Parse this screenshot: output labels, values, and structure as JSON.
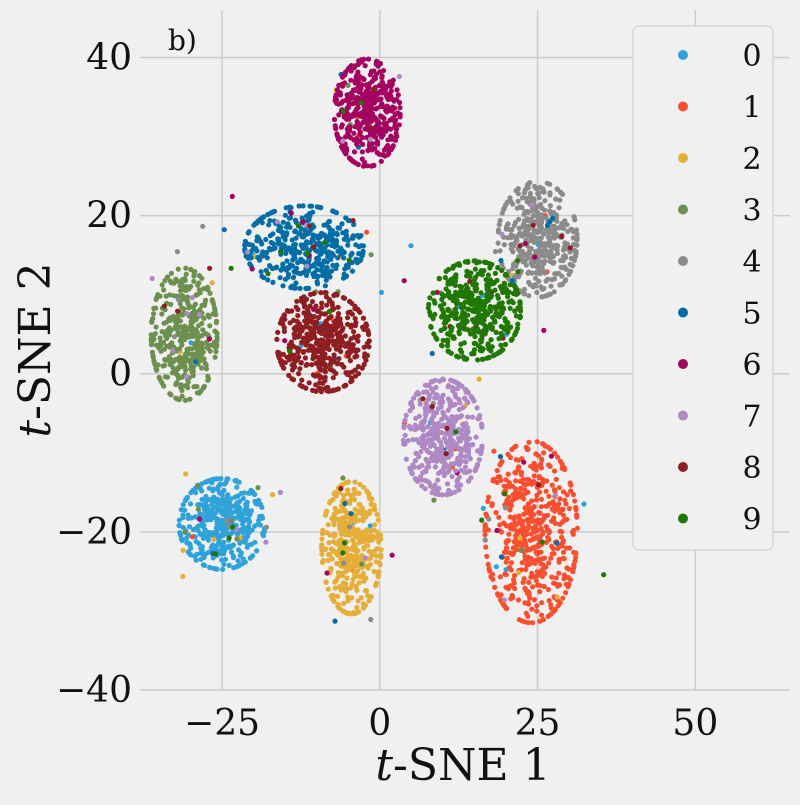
{
  "chart_data": {
    "type": "scatter",
    "panel_label": "b)",
    "xlabel_italic": "t",
    "xlabel_rest": "-SNE 1",
    "ylabel_italic": "t",
    "ylabel_rest": "-SNE 2",
    "xlim": [
      -38,
      65
    ],
    "ylim": [
      -40,
      46
    ],
    "xticks": [
      -25,
      0,
      25,
      50
    ],
    "xtick_labels": [
      "−25",
      "0",
      "25",
      "50"
    ],
    "yticks": [
      40,
      20,
      0,
      -20,
      -40
    ],
    "ytick_labels": [
      "40",
      "20",
      "0",
      "−20",
      "−40"
    ],
    "grid": true,
    "legend_position": "top-right",
    "series": [
      {
        "name": "0",
        "color": "#30a2da",
        "center": [
          -25,
          -19
        ],
        "spread": [
          6.5,
          5.5
        ],
        "count": 420
      },
      {
        "name": "1",
        "color": "#fc4f30",
        "center": [
          24,
          -20
        ],
        "spread": [
          7,
          11
        ],
        "count": 520
      },
      {
        "name": "2",
        "color": "#e5ae38",
        "center": [
          -4.5,
          -22
        ],
        "spread": [
          4.5,
          8
        ],
        "count": 400
      },
      {
        "name": "3",
        "color": "#6d904f",
        "center": [
          -31,
          5
        ],
        "spread": [
          5,
          8
        ],
        "count": 380
      },
      {
        "name": "4",
        "color": "#8b8b8b",
        "center": [
          25,
          17
        ],
        "spread": [
          6,
          7
        ],
        "count": 400
      },
      {
        "name": "5",
        "color": "#006ea5",
        "center": [
          -12,
          16
        ],
        "spread": [
          9,
          5
        ],
        "count": 400
      },
      {
        "name": "6",
        "color": "#a30060",
        "center": [
          -2,
          33
        ],
        "spread": [
          5,
          6.5
        ],
        "count": 400
      },
      {
        "name": "7",
        "color": "#ae89c4",
        "center": [
          10,
          -8
        ],
        "spread": [
          6,
          7
        ],
        "count": 420
      },
      {
        "name": "8",
        "color": "#8e1e22",
        "center": [
          -9,
          4
        ],
        "spread": [
          7,
          6
        ],
        "count": 420
      },
      {
        "name": "9",
        "color": "#217800",
        "center": [
          15,
          8
        ],
        "spread": [
          7,
          6
        ],
        "count": 420
      }
    ]
  }
}
